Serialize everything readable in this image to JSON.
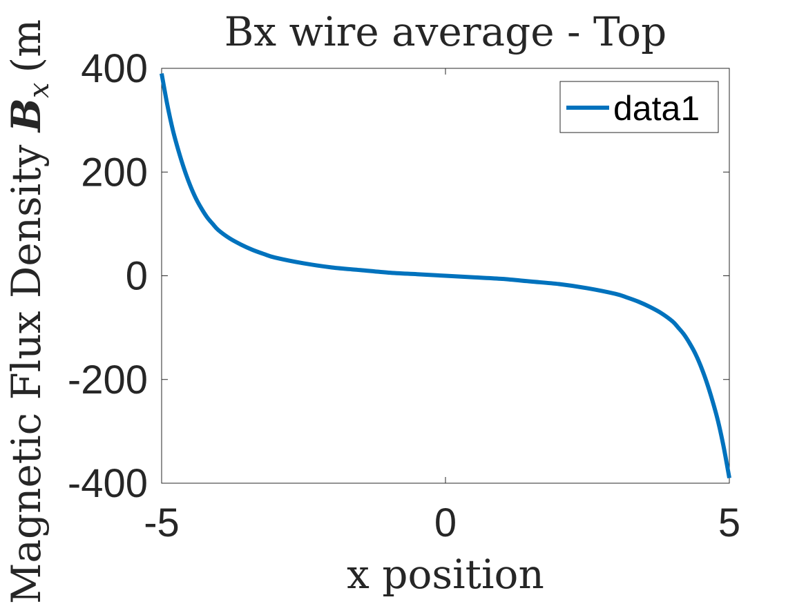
{
  "chart_data": {
    "type": "line",
    "title": "Bx wire average - Top",
    "xlabel": "x position",
    "ylabel": "Magnetic Flux Density ",
    "ylabel_symbol": "B",
    "ylabel_subscript": "x",
    "ylabel_unit": "(m",
    "xlim": [
      -5,
      5
    ],
    "ylim": [
      -400,
      400
    ],
    "xticks": [
      -5,
      0,
      5
    ],
    "yticks": [
      -400,
      -200,
      0,
      200,
      400
    ],
    "xtick_labels": [
      "-5",
      "0",
      "5"
    ],
    "ytick_labels": [
      "-400",
      "-200",
      "0",
      "200",
      "400"
    ],
    "grid": false,
    "legend_position": "top-right",
    "series": [
      {
        "name": "data1",
        "color": "#0072BD",
        "x": [
          -5,
          -4.9,
          -4.8,
          -4.7,
          -4.6,
          -4.5,
          -4.4,
          -4.3,
          -4.2,
          -4.1,
          -4,
          -3.8,
          -3.6,
          -3.4,
          -3.2,
          -3,
          -2.5,
          -2,
          -1.5,
          -1,
          -0.5,
          0,
          0.5,
          1,
          1.5,
          2,
          2.5,
          3,
          3.2,
          3.4,
          3.6,
          3.8,
          4,
          4.1,
          4.2,
          4.3,
          4.4,
          4.5,
          4.6,
          4.7,
          4.8,
          4.9,
          5
        ],
        "y": [
          390,
          330,
          280,
          240,
          205,
          175,
          150,
          130,
          113,
          100,
          88,
          72,
          60,
          50,
          42,
          35,
          24,
          16,
          11,
          6,
          3,
          0,
          -3,
          -6,
          -11,
          -16,
          -24,
          -35,
          -42,
          -50,
          -60,
          -72,
          -88,
          -100,
          -113,
          -130,
          -150,
          -175,
          -205,
          -240,
          -280,
          -330,
          -390
        ]
      }
    ]
  }
}
